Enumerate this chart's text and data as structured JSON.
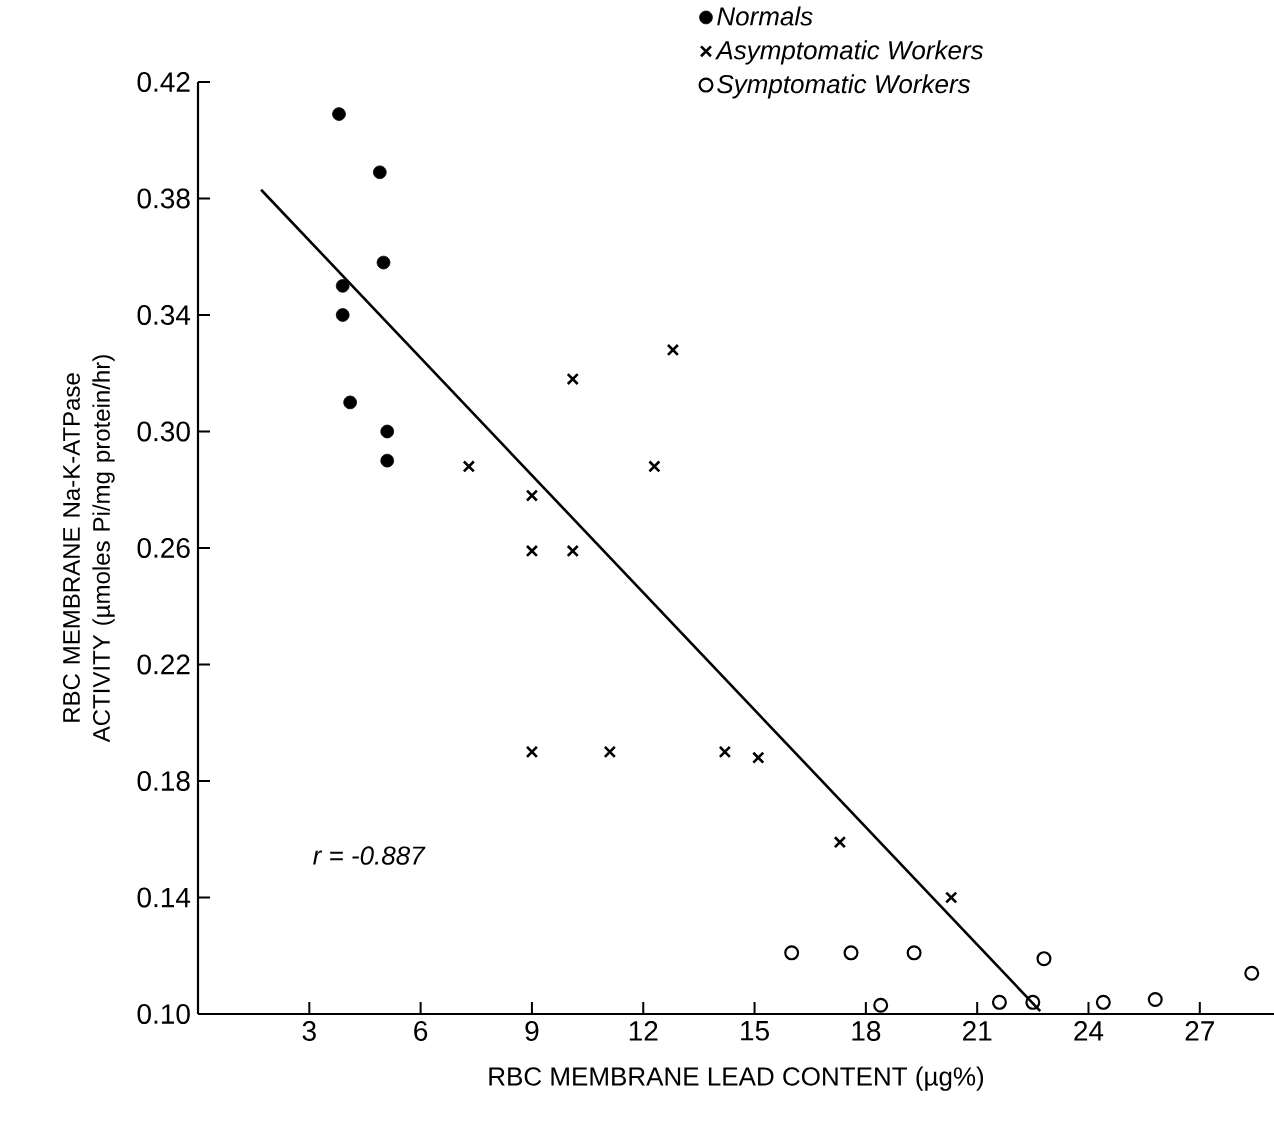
{
  "chart_data": {
    "type": "scatter",
    "xlabel": "RBC MEMBRANE LEAD CONTENT (µg%)",
    "ylabel": "RBC MEMBRANE Na-K-ATPase ACTIVITY (µmoles Pi/mg protein/hr)",
    "xlim": [
      0,
      29
    ],
    "ylim": [
      0.1,
      0.42
    ],
    "xticks": [
      3,
      6,
      9,
      12,
      15,
      18,
      21,
      24,
      27
    ],
    "yticks": [
      {
        "value": 0.1,
        "label": "0.10"
      },
      {
        "value": 0.14,
        "label": "0.14"
      },
      {
        "value": 0.18,
        "label": "0.18"
      },
      {
        "value": 0.22,
        "label": "0.22"
      },
      {
        "value": 0.26,
        "label": "0.26"
      },
      {
        "value": 0.3,
        "label": "0.30"
      },
      {
        "value": 0.34,
        "label": "0.34"
      },
      {
        "value": 0.38,
        "label": "0.38"
      },
      {
        "value": 0.42,
        "label": "0.42"
      }
    ],
    "legend": "top",
    "grid": false,
    "annotations": [
      "r = -0.887"
    ],
    "series": [
      {
        "name": "Normals",
        "color": "#000000",
        "marker": "circle",
        "x": [
          3.8,
          4.9,
          5.0,
          3.9,
          3.9,
          4.1,
          5.1,
          5.1
        ],
        "values": [
          0.409,
          0.389,
          0.358,
          0.35,
          0.34,
          0.31,
          0.3,
          0.29
        ]
      },
      {
        "name": "Asymptomatic Workers",
        "color": "#000000",
        "marker": "cross",
        "x": [
          7.3,
          9.0,
          10.1,
          12.8,
          12.3,
          9.0,
          10.1,
          9.0,
          11.1,
          14.2,
          15.1,
          17.3,
          20.3
        ],
        "values": [
          0.288,
          0.278,
          0.318,
          0.328,
          0.288,
          0.259,
          0.259,
          0.19,
          0.19,
          0.19,
          0.188,
          0.159,
          0.14
        ]
      },
      {
        "name": "Symptomatic Workers",
        "color": "#000000",
        "marker": "open circle",
        "x": [
          16.0,
          17.6,
          19.3,
          22.8,
          28.4,
          18.4,
          21.6,
          22.5,
          24.4,
          25.8
        ],
        "values": [
          0.121,
          0.121,
          0.121,
          0.119,
          0.114,
          0.103,
          0.104,
          0.104,
          0.104,
          0.105
        ]
      },
      {
        "type": "line",
        "color": "#000000",
        "marker": "none",
        "line_style": "solid",
        "x": [
          1.7,
          22.7
        ],
        "values": [
          0.383,
          0.101
        ]
      }
    ]
  }
}
